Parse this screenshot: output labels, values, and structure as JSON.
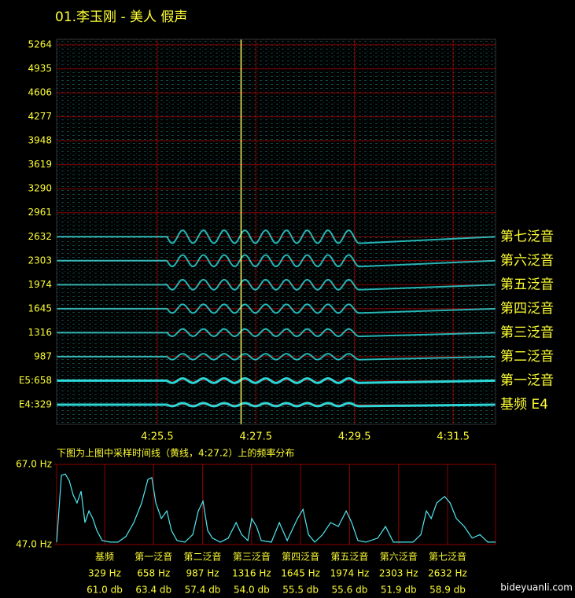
{
  "title": "01.李玉刚 - 美人 假声",
  "watermark": "bideyuanli.com",
  "chart_data": [
    {
      "type": "spectrogram",
      "xlim": [
        263.46,
        272.36
      ],
      "xticks": [
        {
          "value": 265.5,
          "label": "4:25.5"
        },
        {
          "value": 267.5,
          "label": "4:27.5"
        },
        {
          "value": 269.5,
          "label": "4:29.5"
        },
        {
          "value": 271.5,
          "label": "4:31.5"
        }
      ],
      "ylim": [
        59,
        5340
      ],
      "yticks": [
        {
          "value": 329,
          "label": "E4:329"
        },
        {
          "value": 658,
          "label": "E5:658"
        },
        987,
        1316,
        1645,
        1974,
        2303,
        2632,
        2961,
        3290,
        3619,
        3948,
        4277,
        4606,
        4935,
        5264
      ],
      "grid": true,
      "grid_color": "#8b0000",
      "band_color": "#2fe0e0",
      "cursor": {
        "value": 267.2,
        "color": "#ffff66"
      },
      "harmonics": [
        {
          "label": "基频 E4",
          "value": 329
        },
        {
          "label": "第一泛音",
          "value": 658
        },
        {
          "label": "第二泛音",
          "value": 987
        },
        {
          "label": "第三泛音",
          "value": 1316
        },
        {
          "label": "第四泛音",
          "value": 1645
        },
        {
          "label": "第五泛音",
          "value": 1974
        },
        {
          "label": "第六泛音",
          "value": 2303
        },
        {
          "label": "第七泛音",
          "value": 2632
        }
      ]
    },
    {
      "type": "line",
      "annotation": "下图为上图中采样时间线（黄线，4:27.2）上的频率分布",
      "xlim": [
        7,
        2954
      ],
      "ylim": [
        47,
        67
      ],
      "yticks": [
        {
          "value": 67,
          "label": "67.0 Hz"
        },
        {
          "value": 47,
          "label": "47.0 Hz"
        }
      ],
      "xticks": [
        {
          "value": 329,
          "label": "329 Hz"
        },
        {
          "value": 658,
          "label": "658 Hz"
        },
        {
          "value": 987,
          "label": "987 Hz"
        },
        {
          "value": 1316,
          "label": "1316 Hz"
        },
        {
          "value": 1645,
          "label": "1645 Hz"
        },
        {
          "value": 1974,
          "label": "1974 Hz"
        },
        {
          "value": 2303,
          "label": "2303 Hz"
        },
        {
          "value": 2632,
          "label": "2632 Hz"
        }
      ],
      "grid_color": "#8b0000",
      "categories": [
        "基频",
        "第一泛音",
        "第二泛音",
        "第三泛音",
        "第四泛音",
        "第五泛音",
        "第六泛音",
        "第七泛音"
      ],
      "levels": [
        "61.0 db",
        "63.4 db",
        "57.4 db",
        "54.0 db",
        "55.5 db",
        "55.6 db",
        "51.9 db",
        "58.9 db"
      ],
      "series": [
        {
          "color": "#4fe8f0",
          "x": [
            7,
            39,
            65,
            92,
            118,
            144,
            171,
            197,
            224,
            250,
            277,
            313,
            366,
            419,
            472,
            525,
            578,
            620,
            646,
            673,
            710,
            747,
            778,
            815,
            868,
            921,
            958,
            990,
            1021,
            1053,
            1106,
            1159,
            1212,
            1249,
            1291,
            1317,
            1349,
            1381,
            1449,
            1502,
            1555,
            1624,
            1661,
            1698,
            1740,
            1793,
            1846,
            1898,
            1951,
            1988,
            2030,
            2083,
            2163,
            2215,
            2268,
            2321,
            2400,
            2453,
            2490,
            2522,
            2559,
            2612,
            2649,
            2691,
            2744,
            2797,
            2849,
            2902,
            2954
          ],
          "values": [
            47.6,
            64.3,
            64.6,
            62.9,
            59.4,
            57.4,
            60.3,
            52.5,
            55.4,
            53.5,
            50.5,
            48.0,
            47.6,
            47.6,
            49.0,
            52.5,
            57.4,
            63.3,
            63.7,
            57.4,
            53.5,
            55.4,
            50.5,
            48.0,
            47.6,
            49.5,
            55.4,
            57.8,
            50.5,
            48.6,
            47.6,
            48.6,
            52.5,
            49.5,
            48.0,
            53.5,
            51.5,
            48.0,
            47.6,
            52.5,
            48.0,
            53.5,
            55.8,
            49.5,
            47.6,
            49.5,
            52.5,
            51.5,
            55.4,
            52.5,
            48.0,
            47.6,
            48.6,
            51.5,
            47.6,
            47.6,
            47.6,
            49.5,
            55.4,
            53.5,
            57.4,
            59.0,
            57.4,
            53.5,
            51.5,
            48.6,
            49.5,
            47.6,
            47.6
          ]
        }
      ]
    }
  ]
}
